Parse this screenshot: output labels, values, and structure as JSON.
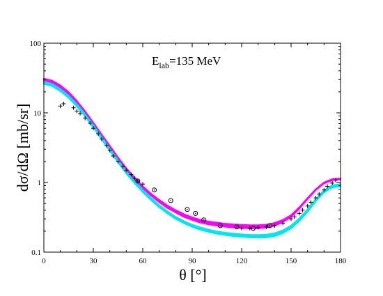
{
  "chart_data": {
    "type": "line",
    "annotation": {
      "main": "E",
      "sub": "lab",
      "rest": "=135  MeV"
    },
    "xlabel": "θ  [°]",
    "ylabel": "dσ/dΩ    [mb/sr]",
    "xlim": [
      0,
      180
    ],
    "ylim": [
      0.1,
      100
    ],
    "yscale": "log",
    "xticks": [
      0,
      30,
      60,
      90,
      120,
      150,
      180
    ],
    "xtick_labels": [
      "0",
      "30",
      "60",
      "90",
      "120",
      "150",
      "180"
    ],
    "yticks": [
      0.1,
      1,
      10,
      100
    ],
    "ytick_labels": [
      "0.1",
      "1",
      "10",
      "100"
    ],
    "grid": false,
    "series": [
      {
        "color": "#ff00ff",
        "band": true,
        "x": [
          0,
          5,
          10,
          15,
          20,
          25,
          30,
          35,
          40,
          45,
          50,
          55,
          60,
          65,
          70,
          75,
          80,
          85,
          90,
          95,
          100,
          105,
          110,
          115,
          120,
          125,
          130,
          135,
          140,
          145,
          150,
          155,
          160,
          165,
          170,
          175,
          180
        ],
        "lower": [
          28.5,
          26.5,
          22.5,
          18.0,
          13.5,
          9.6,
          6.6,
          4.5,
          3.1,
          2.1,
          1.5,
          1.1,
          0.83,
          0.65,
          0.52,
          0.43,
          0.37,
          0.32,
          0.29,
          0.265,
          0.25,
          0.24,
          0.232,
          0.226,
          0.222,
          0.22,
          0.22,
          0.225,
          0.24,
          0.27,
          0.32,
          0.42,
          0.58,
          0.78,
          0.97,
          1.08,
          1.1
        ],
        "upper": [
          31.0,
          29.0,
          24.8,
          19.8,
          14.8,
          10.5,
          7.2,
          4.9,
          3.35,
          2.28,
          1.6,
          1.18,
          0.88,
          0.69,
          0.56,
          0.465,
          0.4,
          0.35,
          0.315,
          0.29,
          0.275,
          0.265,
          0.256,
          0.25,
          0.246,
          0.244,
          0.244,
          0.248,
          0.262,
          0.29,
          0.34,
          0.44,
          0.6,
          0.8,
          1.0,
          1.12,
          1.14
        ]
      },
      {
        "color": "#00e5ee",
        "band": true,
        "x": [
          0,
          5,
          10,
          15,
          20,
          25,
          30,
          35,
          40,
          45,
          50,
          55,
          60,
          65,
          70,
          75,
          80,
          85,
          90,
          95,
          100,
          105,
          110,
          115,
          120,
          125,
          130,
          135,
          140,
          145,
          150,
          155,
          160,
          165,
          170,
          175,
          180
        ],
        "lower": [
          26.0,
          24.2,
          20.5,
          16.4,
          12.4,
          8.9,
          6.2,
          4.2,
          2.85,
          1.95,
          1.35,
          0.98,
          0.73,
          0.56,
          0.44,
          0.36,
          0.3,
          0.26,
          0.23,
          0.21,
          0.195,
          0.184,
          0.176,
          0.17,
          0.166,
          0.163,
          0.162,
          0.163,
          0.17,
          0.188,
          0.22,
          0.28,
          0.38,
          0.54,
          0.72,
          0.85,
          0.88
        ],
        "upper": [
          28.0,
          26.0,
          22.0,
          17.6,
          13.3,
          9.5,
          6.6,
          4.5,
          3.05,
          2.08,
          1.44,
          1.05,
          0.78,
          0.6,
          0.47,
          0.385,
          0.32,
          0.278,
          0.247,
          0.226,
          0.21,
          0.198,
          0.19,
          0.184,
          0.18,
          0.177,
          0.176,
          0.178,
          0.186,
          0.205,
          0.24,
          0.305,
          0.41,
          0.58,
          0.77,
          0.91,
          0.95
        ]
      }
    ],
    "plus_data": {
      "x": [
        10,
        12,
        18,
        20,
        22,
        25,
        28,
        30,
        33,
        35,
        38,
        40,
        42,
        45,
        48,
        50,
        53,
        55,
        57,
        60,
        120,
        125,
        130,
        135,
        140,
        145,
        150,
        152,
        155,
        157,
        160,
        162,
        165,
        167,
        170,
        172,
        175,
        177
      ],
      "y": [
        12.5,
        13.5,
        11.8,
        10.6,
        9.8,
        8.4,
        7.1,
        6.0,
        5.0,
        4.2,
        3.4,
        2.9,
        2.4,
        2.0,
        1.7,
        1.5,
        1.3,
        1.15,
        1.05,
        0.95,
        0.22,
        0.22,
        0.225,
        0.23,
        0.24,
        0.26,
        0.3,
        0.32,
        0.36,
        0.4,
        0.46,
        0.52,
        0.6,
        0.68,
        0.78,
        0.88,
        0.98,
        1.08
      ]
    },
    "circle_data": {
      "x": [
        57,
        67,
        77,
        87,
        92,
        97,
        107,
        117,
        127,
        137
      ],
      "y": [
        1.05,
        0.78,
        0.55,
        0.41,
        0.36,
        0.29,
        0.24,
        0.23,
        0.22,
        0.24
      ]
    }
  }
}
